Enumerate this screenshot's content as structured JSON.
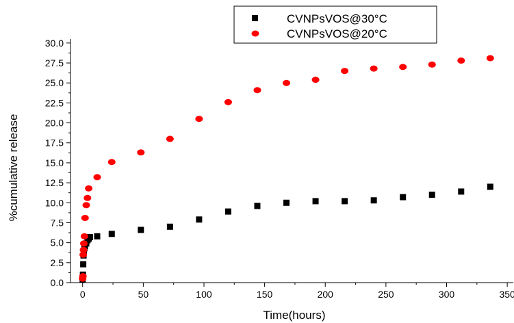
{
  "chart_data": {
    "type": "scatter",
    "xlabel": "Time(hours)",
    "ylabel": "%cumulative release",
    "xlim": [
      -10,
      355
    ],
    "ylim": [
      0,
      30.5
    ],
    "x_ticks": [
      "0",
      "50",
      "100",
      "150",
      "200",
      "250",
      "300",
      "350"
    ],
    "y_ticks": [
      "0.0",
      "2.5",
      "5.0",
      "7.5",
      "10.0",
      "12.5",
      "15.0",
      "17.5",
      "20.0",
      "22.5",
      "25.0",
      "27.5",
      "30.0"
    ],
    "grid": false,
    "legend_position": "top-right",
    "series": [
      {
        "name": "CVNPsVOS@30°C",
        "marker": "square",
        "color": "#000000",
        "points": [
          [
            0,
            0.4
          ],
          [
            0.25,
            1.0
          ],
          [
            0.5,
            2.3
          ],
          [
            0.75,
            3.4
          ],
          [
            1,
            4.0
          ],
          [
            1.5,
            4.3
          ],
          [
            2,
            4.6
          ],
          [
            3,
            4.9
          ],
          [
            4,
            5.3
          ],
          [
            5,
            5.5
          ],
          [
            6,
            5.7
          ],
          [
            12,
            5.8
          ],
          [
            24,
            6.1
          ],
          [
            48,
            6.6
          ],
          [
            72,
            7.0
          ],
          [
            96,
            7.9
          ],
          [
            120,
            8.9
          ],
          [
            144,
            9.6
          ],
          [
            168,
            10.0
          ],
          [
            192,
            10.2
          ],
          [
            216,
            10.2
          ],
          [
            240,
            10.3
          ],
          [
            264,
            10.7
          ],
          [
            288,
            11.0
          ],
          [
            312,
            11.4
          ],
          [
            336,
            12.0
          ]
        ]
      },
      {
        "name": "CVNPsVOS@20°C",
        "marker": "circle",
        "color": "#ff0000",
        "points": [
          [
            0,
            0.5
          ],
          [
            0.25,
            0.8
          ],
          [
            0.5,
            3.5
          ],
          [
            0.75,
            4.1
          ],
          [
            1,
            4.9
          ],
          [
            1.5,
            5.8
          ],
          [
            2,
            8.1
          ],
          [
            3,
            9.7
          ],
          [
            4,
            10.6
          ],
          [
            5,
            11.8
          ],
          [
            12,
            13.2
          ],
          [
            24,
            15.1
          ],
          [
            48,
            16.3
          ],
          [
            72,
            18.0
          ],
          [
            96,
            20.5
          ],
          [
            120,
            22.6
          ],
          [
            144,
            24.1
          ],
          [
            168,
            25.0
          ],
          [
            192,
            25.4
          ],
          [
            216,
            26.5
          ],
          [
            240,
            26.8
          ],
          [
            264,
            27.0
          ],
          [
            288,
            27.3
          ],
          [
            312,
            27.8
          ],
          [
            336,
            28.1
          ]
        ]
      }
    ]
  }
}
